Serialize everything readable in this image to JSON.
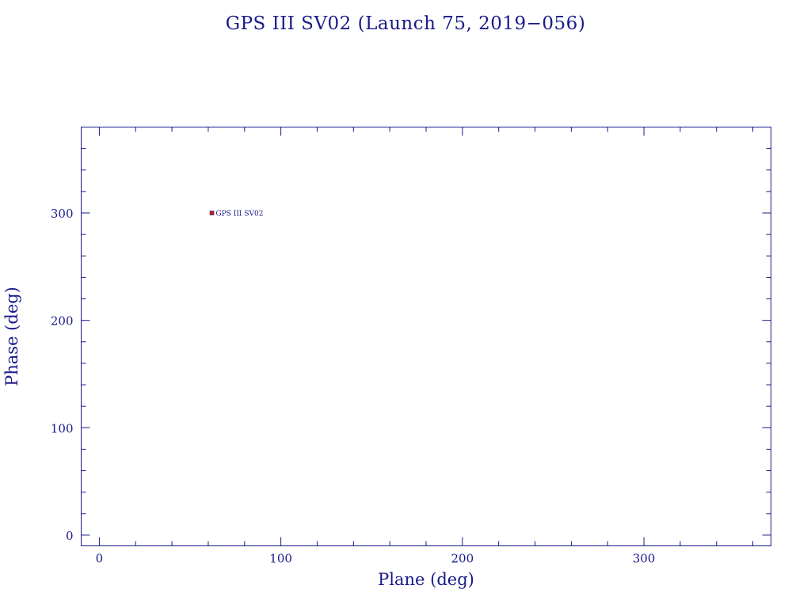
{
  "chart_data": {
    "type": "scatter",
    "title": "GPS III SV02 (Launch 75, 2019−056)",
    "xlabel": "Plane (deg)",
    "ylabel": "Phase (deg)",
    "xlim": [
      -10,
      370
    ],
    "ylim": [
      -10,
      380
    ],
    "x_major_ticks": [
      0,
      100,
      200,
      300
    ],
    "x_tick_labels": [
      "0",
      "100",
      "200",
      "300"
    ],
    "x_minor_step": 20,
    "y_major_ticks": [
      0,
      100,
      200,
      300
    ],
    "y_tick_labels": [
      "0",
      "100",
      "200",
      "300"
    ],
    "y_minor_step": 20,
    "grid": false,
    "points": [
      {
        "x": 62,
        "y": 300,
        "label": "GPS III SV02"
      }
    ],
    "colors": {
      "axes": "#1a1a8c",
      "marker": "#cc2200"
    }
  }
}
